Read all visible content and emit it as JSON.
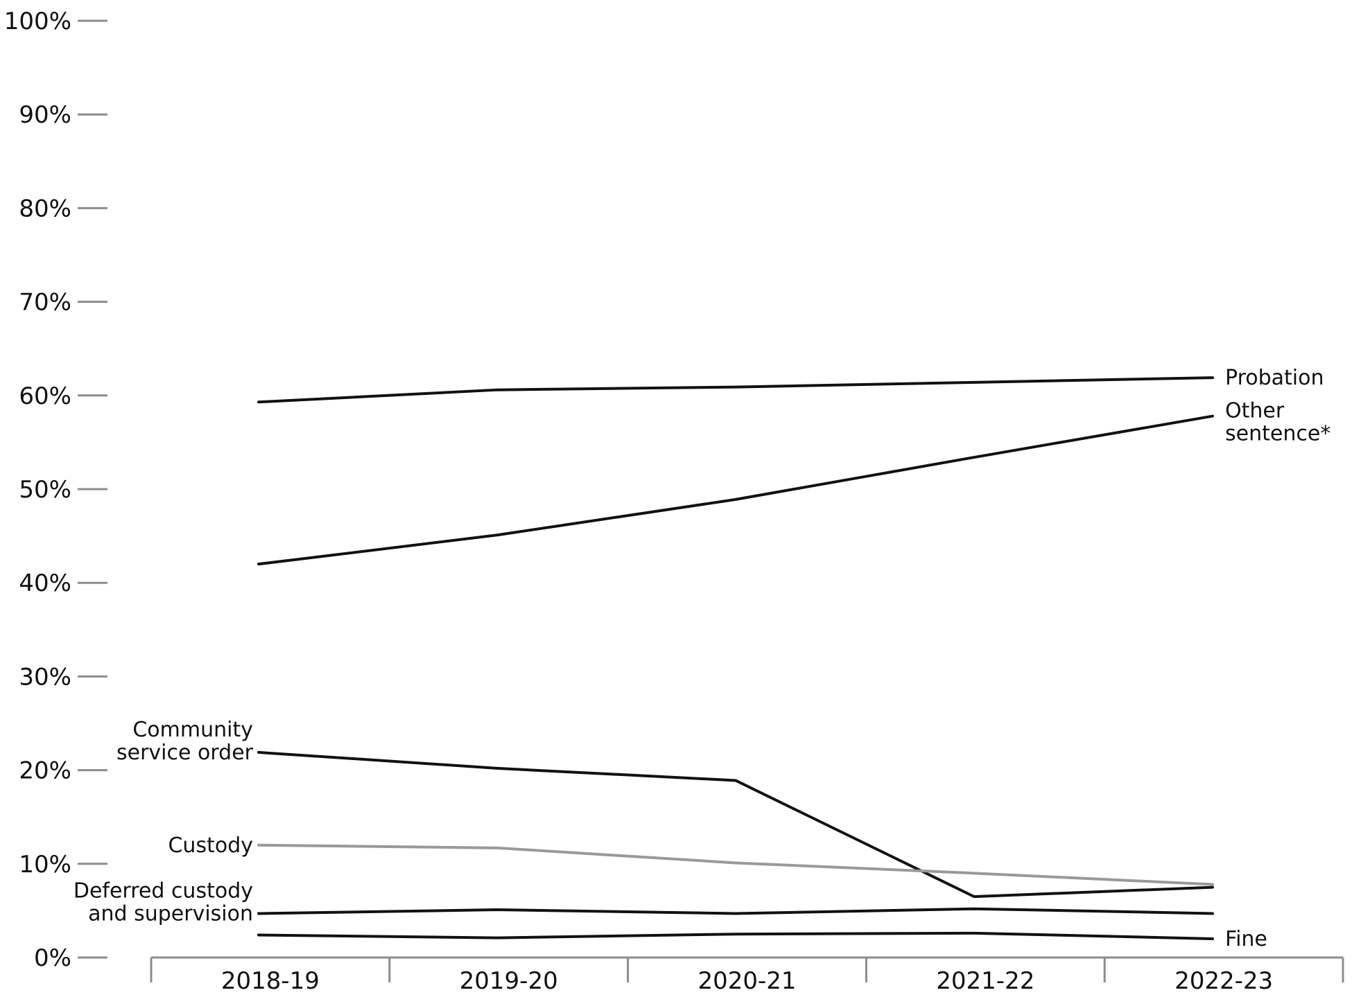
{
  "chart_data": {
    "type": "line",
    "title": "",
    "xlabel": "",
    "ylabel": "",
    "categories": [
      "2018-19",
      "2019-20",
      "2020-21",
      "2021-22",
      "2022-23"
    ],
    "ylim": [
      0,
      100
    ],
    "yticks": [
      0,
      10,
      20,
      30,
      40,
      50,
      60,
      70,
      80,
      90,
      100
    ],
    "ytick_labels": [
      "0%",
      "10%",
      "20%",
      "30%",
      "40%",
      "50%",
      "60%",
      "70%",
      "80%",
      "90%",
      "100%"
    ],
    "grid": false,
    "legend": "none (direct line labels)",
    "series": [
      {
        "name": "Probation",
        "values": [
          59.3,
          60.6,
          60.9,
          61.4,
          61.9
        ],
        "color": "#111111",
        "label_lines": [
          "Probation"
        ],
        "label_side": "right"
      },
      {
        "name": "Other sentence*",
        "values": [
          42.0,
          45.1,
          48.9,
          53.4,
          57.8
        ],
        "color": "#111111",
        "label_lines": [
          "Other",
          "sentence*"
        ],
        "label_side": "right"
      },
      {
        "name": "Community service order",
        "values": [
          21.9,
          20.2,
          18.9,
          6.5,
          7.5
        ],
        "color": "#111111",
        "label_lines": [
          "Community",
          "service order"
        ],
        "label_side": "left"
      },
      {
        "name": "Custody",
        "values": [
          12.0,
          11.7,
          10.1,
          9.0,
          7.8
        ],
        "color": "#999999",
        "label_lines": [
          "Custody"
        ],
        "label_side": "left"
      },
      {
        "name": "Deferred custody and supervision",
        "values": [
          4.7,
          5.1,
          4.7,
          5.2,
          4.7
        ],
        "color": "#111111",
        "label_lines": [
          "Deferred custody",
          "and supervision"
        ],
        "label_side": "left"
      },
      {
        "name": "Fine",
        "values": [
          2.4,
          2.1,
          2.5,
          2.6,
          2.0
        ],
        "color": "#111111",
        "label_lines": [
          "Fine"
        ],
        "label_side": "right"
      }
    ]
  }
}
